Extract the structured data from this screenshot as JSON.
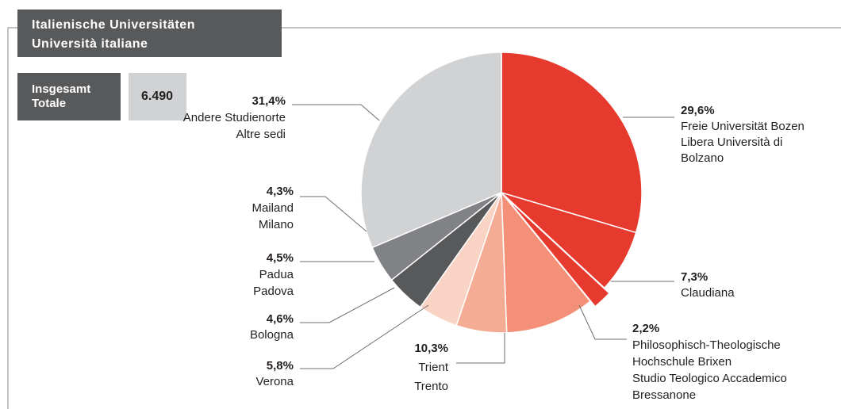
{
  "header": {
    "title": [
      "Italienische Universitäten",
      "Università italiane"
    ]
  },
  "total": {
    "label": [
      "Insgesamt",
      "Totale"
    ],
    "value": "6.490"
  },
  "chart_data": {
    "type": "pie",
    "categories": [
      [
        "Freie Universität Bozen",
        "Libera Università di",
        "Bolzano"
      ],
      [
        "Claudiana"
      ],
      [
        "Philosophisch-Theologische",
        "Hochschule Brixen",
        "Studio Teologico Accademico",
        "Bressanone"
      ],
      [
        "Trient",
        "Trento"
      ],
      [
        "Verona"
      ],
      [
        "Bologna"
      ],
      [
        "Padua",
        "Padova"
      ],
      [
        "Mailand",
        "Milano"
      ],
      [
        "Andere Studienorte",
        "Altre sedi"
      ]
    ],
    "values": [
      29.6,
      7.3,
      2.2,
      10.3,
      5.8,
      4.6,
      4.5,
      4.3,
      31.4
    ],
    "value_labels": [
      "29,6%",
      "7,3%",
      "2,2%",
      "10,3%",
      "5,8%",
      "4,6%",
      "4,5%",
      "4,3%",
      "31,4%"
    ],
    "colors": [
      "#e63a2e",
      "#e63a2e",
      "#e63a2e",
      "#f39077",
      "#f5ac94",
      "#f9d3c4",
      "#58595b",
      "#818285",
      "#d1d2d4"
    ]
  }
}
